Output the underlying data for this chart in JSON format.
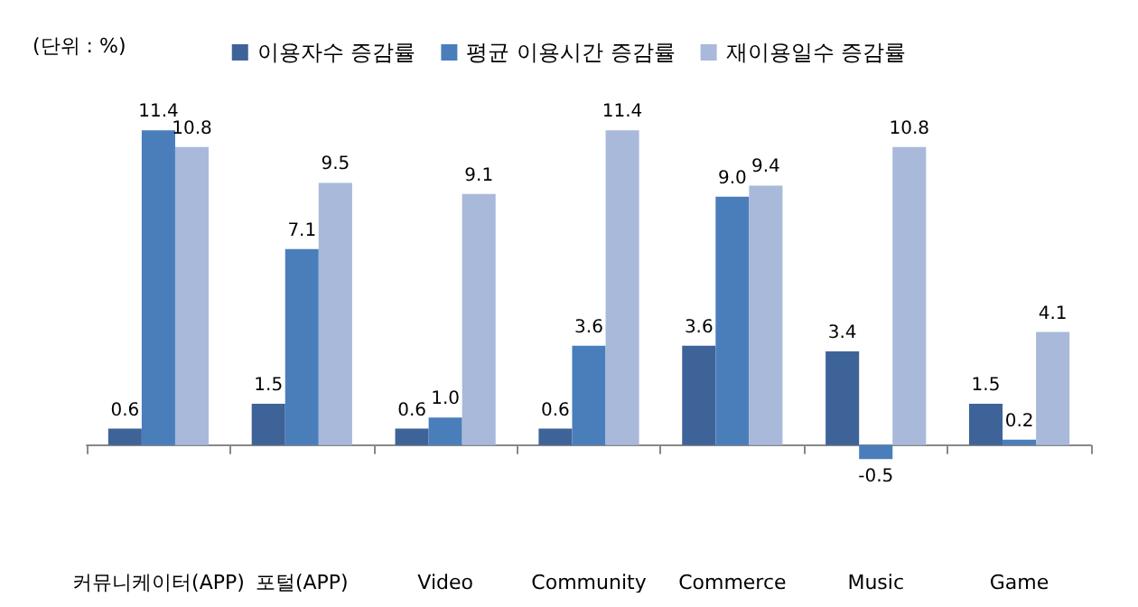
{
  "chart_data": {
    "type": "bar",
    "annotations": [
      "(단위 : %)"
    ],
    "categories": [
      "커뮤니케이터(APP)",
      "포털(APP)",
      "Video",
      "Community",
      "Commerce",
      "Music",
      "Game"
    ],
    "series": [
      {
        "name": "이용자수 증감률",
        "color": "#3e6398",
        "values": [
          0.6,
          1.5,
          0.6,
          0.6,
          3.6,
          3.4,
          1.5
        ],
        "value_labels": [
          "0.6",
          "1.5",
          "0.6",
          "0.6",
          "3.6",
          "3.4",
          "1.5"
        ]
      },
      {
        "name": "평균 이용시간 증감률",
        "color": "#4a7ebb",
        "values": [
          11.4,
          7.1,
          1.0,
          3.6,
          9.0,
          -0.5,
          0.2
        ],
        "value_labels": [
          "11.4",
          "7.1",
          "1.0",
          "3.6",
          "9.0",
          "-0.5",
          "0.2"
        ]
      },
      {
        "name": "재이용일수 증감률",
        "color": "#a9b9d9",
        "values": [
          10.8,
          9.5,
          9.1,
          11.4,
          9.4,
          10.8,
          4.1
        ],
        "value_labels": [
          "10.8",
          "9.5",
          "9.1",
          "11.4",
          "9.4",
          "10.8",
          "4.1"
        ]
      }
    ],
    "legend": "top",
    "grid": false
  }
}
